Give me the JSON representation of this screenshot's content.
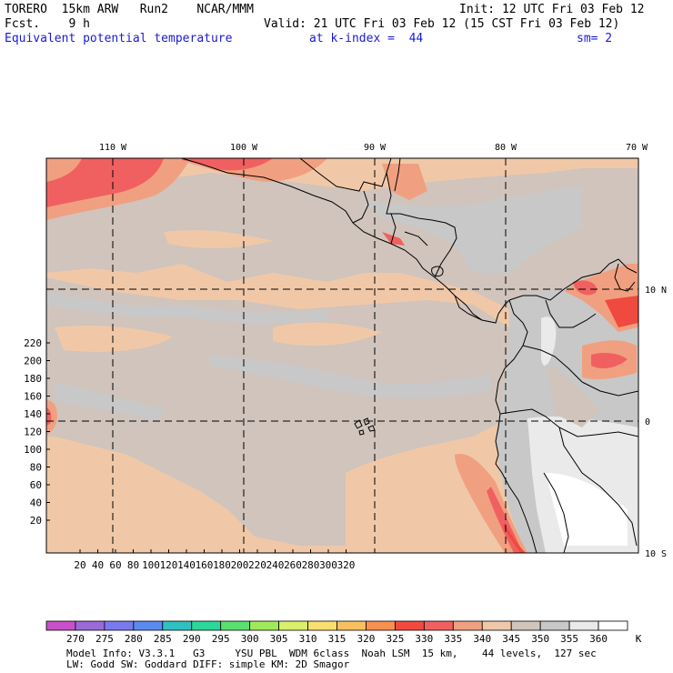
{
  "header": {
    "model": "TORERO  15km ARW   Run2    NCAR/MMM",
    "init": "Init: 12 UTC Fri 03 Feb 12",
    "fcst": "Fcst.    9 h",
    "valid": "Valid: 21 UTC Fri 03 Feb 12 (15 CST Fri 03 Feb 12)",
    "field": "Equivalent potential temperature",
    "level": "at k-index =  44",
    "smooth": "sm= 2"
  },
  "map": {
    "x_ticks": [
      "20",
      "40",
      "60",
      "80",
      "100",
      "120",
      "140",
      "160",
      "180",
      "200",
      "220",
      "240",
      "260",
      "280",
      "300",
      "320"
    ],
    "y_ticks": [
      "20",
      "40",
      "60",
      "80",
      "100",
      "120",
      "140",
      "160",
      "180",
      "200",
      "220"
    ],
    "lon_labels": [
      "110 W",
      "100 W",
      "90 W",
      "80 W",
      "70 W"
    ],
    "lat_labels": [
      "10 N",
      "0",
      "10 S"
    ]
  },
  "colorbar": {
    "labels": [
      "270",
      "275",
      "280",
      "285",
      "290",
      "295",
      "300",
      "305",
      "310",
      "315",
      "320",
      "325",
      "330",
      "335",
      "340",
      "345",
      "350",
      "355",
      "360"
    ],
    "unit": "K",
    "colors": [
      "#c850c8",
      "#9a6ad8",
      "#7a7aee",
      "#5a8af0",
      "#2ec2c2",
      "#2ad89a",
      "#5ae070",
      "#a0ea5a",
      "#d8f06a",
      "#f8e070",
      "#f8c060",
      "#f89050",
      "#f04a40",
      "#f06060",
      "#f0a080",
      "#f0c8a8",
      "#d0c4bc",
      "#c8c8c8",
      "#eaeaea",
      "#ffffff"
    ]
  },
  "footer": {
    "line1": "Model Info: V3.3.1   G3     YSU PBL  WDM 6class  Noah LSM  15 km,    44 levels,  127 sec",
    "line2": "LW: Godd SW: Goddard DIFF: simple KM: 2D Smagor"
  }
}
